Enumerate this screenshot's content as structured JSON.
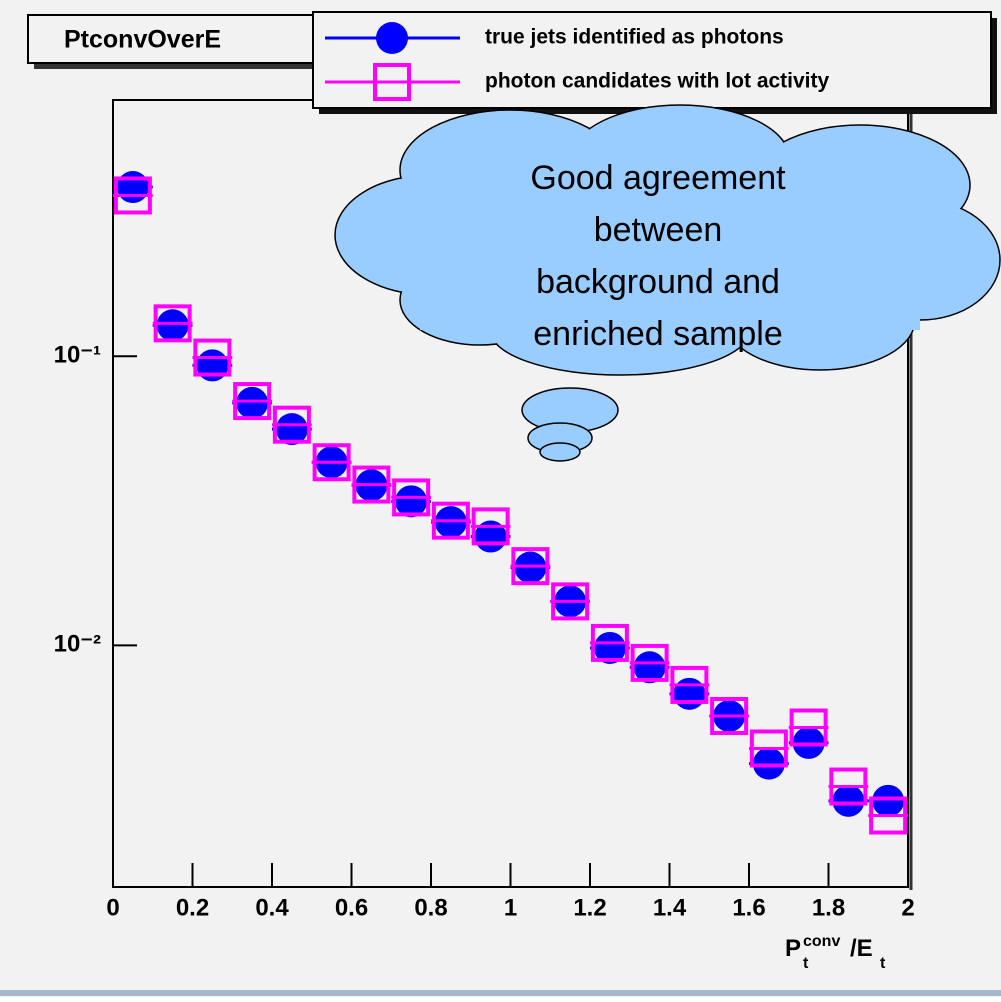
{
  "chart_data": {
    "type": "scatter",
    "title": "PtconvOverE",
    "x_label": [
      "P",
      "t",
      "conv",
      "/E",
      "t"
    ],
    "annotation": [
      "Good agreement",
      "between",
      "background and",
      "enriched sample"
    ],
    "x": [
      0.05,
      0.15,
      0.25,
      0.35,
      0.45,
      0.55,
      0.65,
      0.75,
      0.85,
      0.95,
      1.05,
      1.15,
      1.25,
      1.35,
      1.45,
      1.55,
      1.65,
      1.75,
      1.85,
      1.95
    ],
    "bin_half_width": 0.05,
    "series": [
      {
        "name": "true jets identified as photons",
        "color": "#0000ff",
        "marker": "circle",
        "values": [
          0.385,
          0.128,
          0.093,
          0.069,
          0.056,
          0.043,
          0.0358,
          0.0315,
          0.0267,
          0.0238,
          0.0186,
          0.0142,
          0.0098,
          0.0084,
          0.0068,
          0.0057,
          0.0039,
          0.0046,
          0.0029,
          0.0029
        ]
      },
      {
        "name": "photon candidates with lot activity",
        "color": "#ff00ff",
        "marker": "square",
        "values": [
          0.36,
          0.13,
          0.099,
          0.07,
          0.058,
          0.043,
          0.036,
          0.0325,
          0.027,
          0.0258,
          0.0188,
          0.0142,
          0.0102,
          0.0087,
          0.0073,
          0.0057,
          0.0044,
          0.0052,
          0.00325,
          0.00258
        ]
      }
    ],
    "xlim": [
      0,
      2
    ],
    "xticks": [
      0,
      0.2,
      0.4,
      0.6,
      0.8,
      1,
      1.2,
      1.4,
      1.6,
      1.8,
      2
    ],
    "ylim": [
      0.00146,
      0.77
    ],
    "yticks": [
      {
        "value": 0.1,
        "label": "10⁻¹"
      },
      {
        "value": 0.01,
        "label": "10⁻²"
      }
    ],
    "log_y": true,
    "legend": "top-right"
  }
}
